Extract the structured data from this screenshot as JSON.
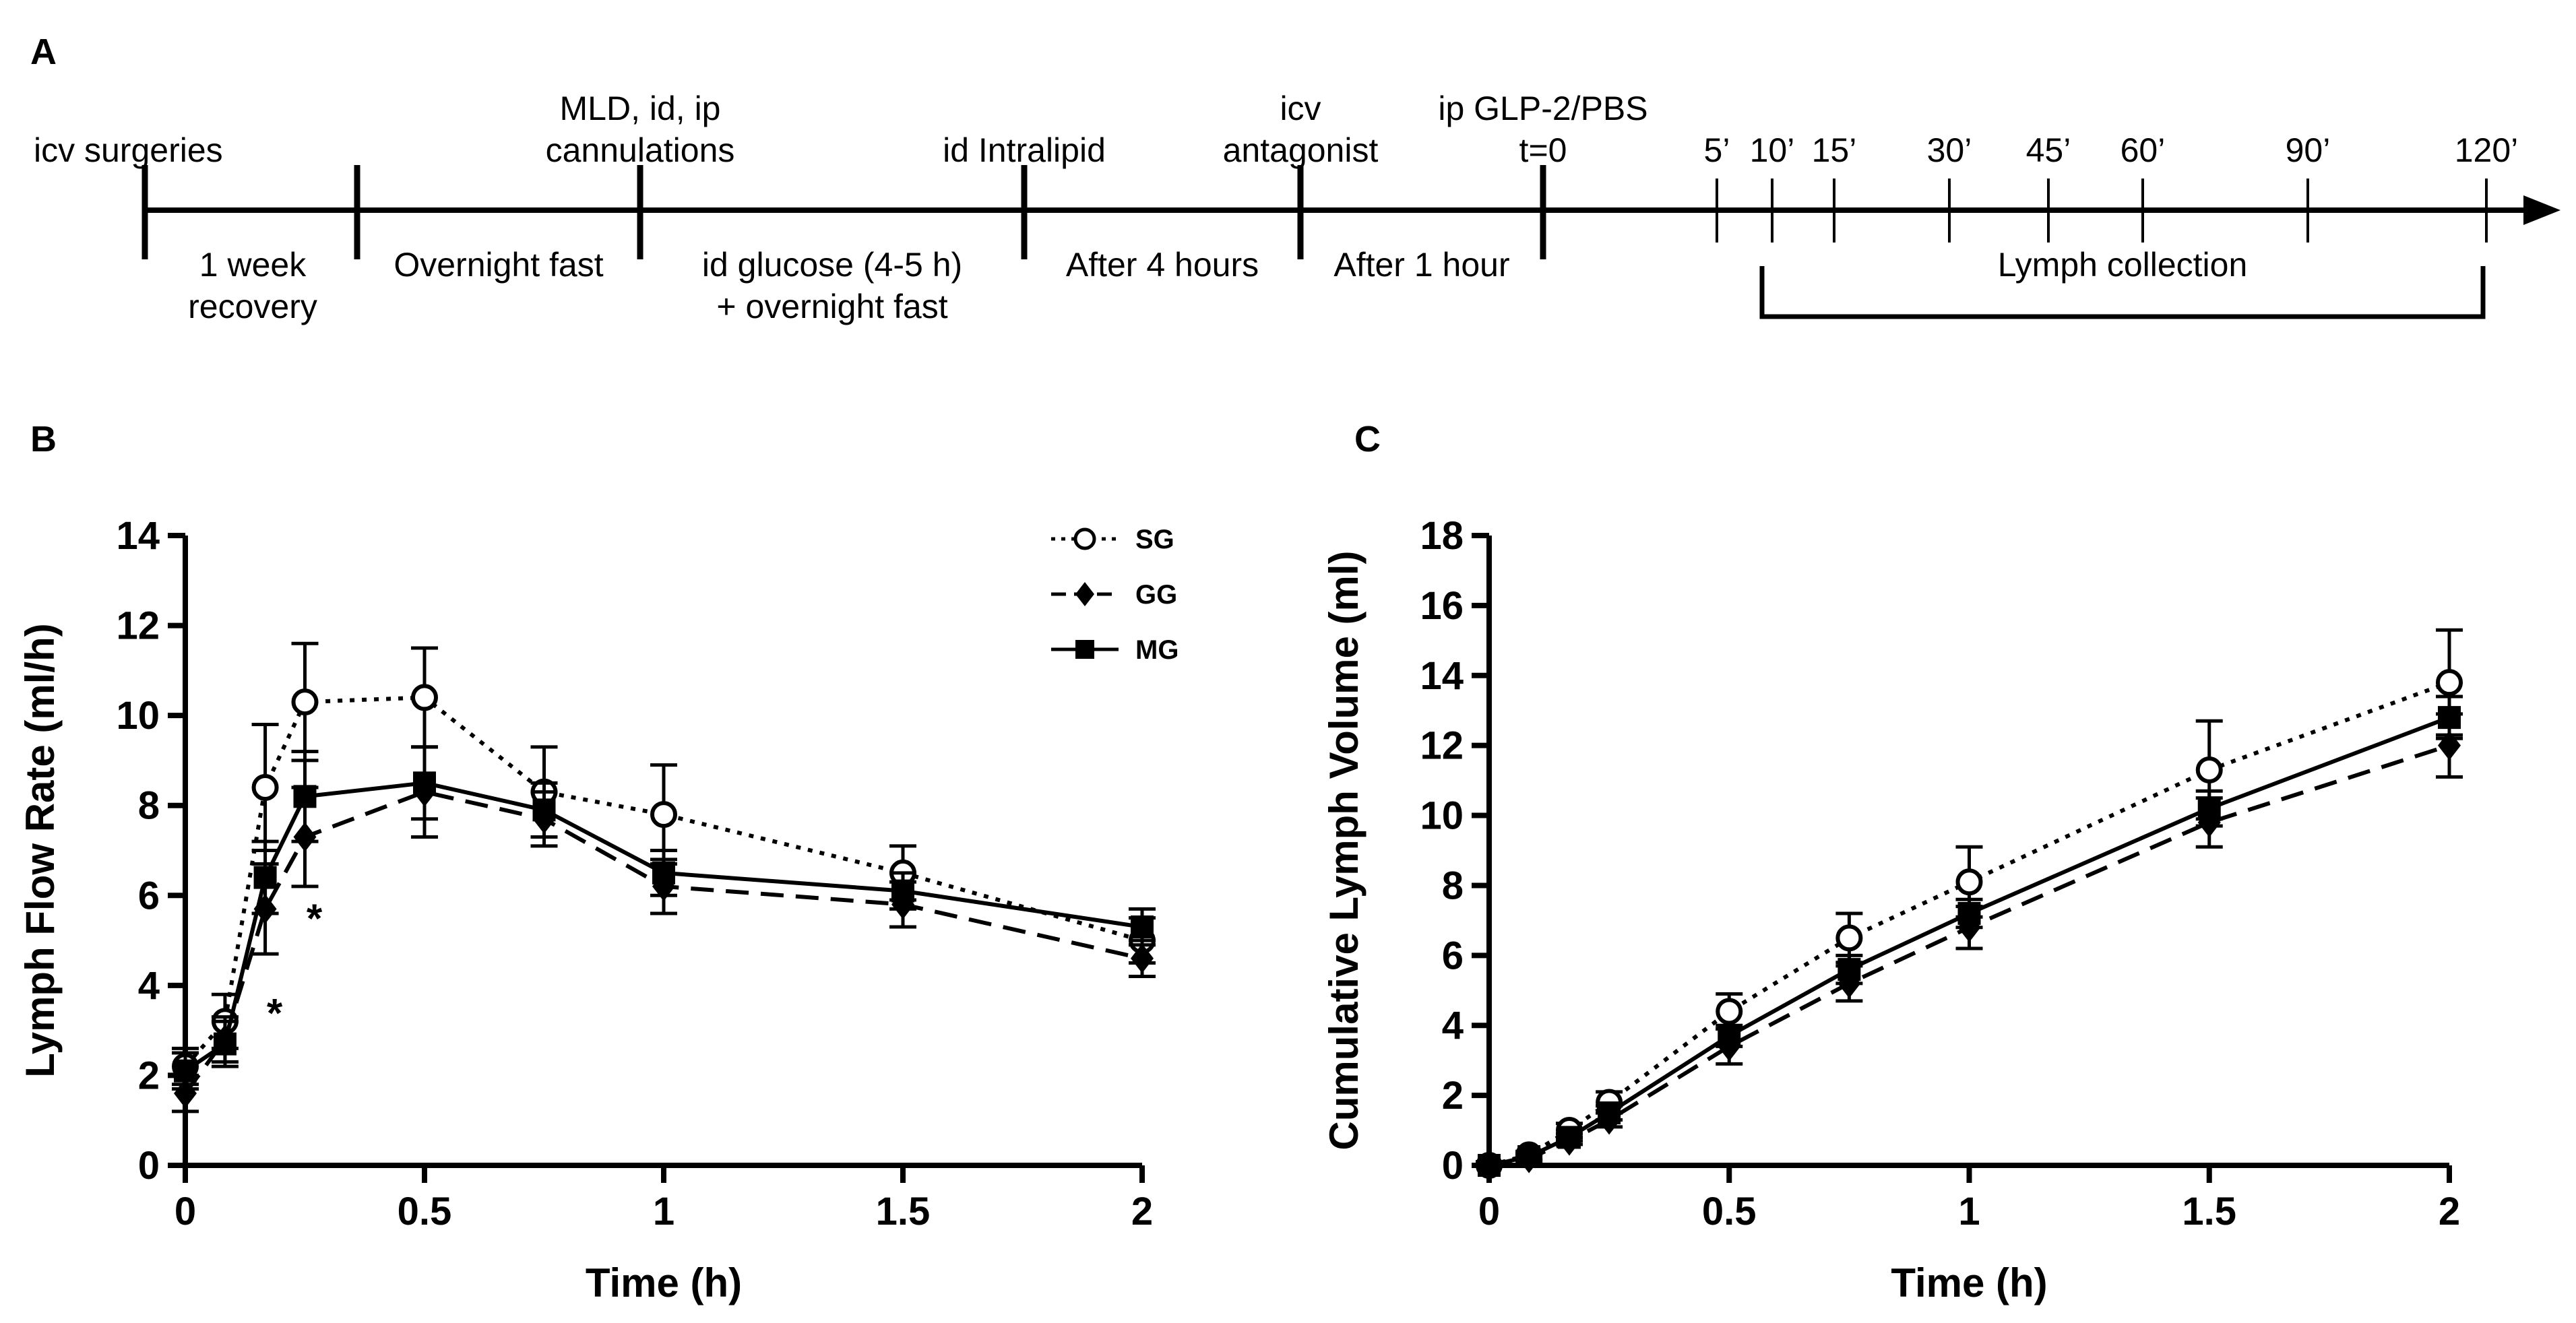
{
  "panel_a": {
    "letter": "A",
    "events_top": [
      {
        "id": "icv",
        "lines": [
          "icv surgeries"
        ]
      },
      {
        "id": "mld",
        "lines": [
          "MLD, id, ip",
          "cannulations"
        ]
      },
      {
        "id": "intralipid",
        "lines": [
          "id Intralipid"
        ]
      },
      {
        "id": "antag",
        "lines": [
          "icv",
          "antagonist"
        ]
      },
      {
        "id": "glp2",
        "lines": [
          "ip GLP-2/PBS",
          "t=0"
        ]
      }
    ],
    "intervals_below": [
      {
        "id": "recovery",
        "lines": [
          "1 week",
          "recovery"
        ]
      },
      {
        "id": "fast1",
        "lines": [
          "Overnight fast"
        ]
      },
      {
        "id": "glucose",
        "lines": [
          "id glucose (4-5 h)",
          "+ overnight fast"
        ]
      },
      {
        "id": "after4",
        "lines": [
          "After 4 hours"
        ]
      },
      {
        "id": "after1",
        "lines": [
          "After 1 hour"
        ]
      }
    ],
    "sample_times": [
      "5’",
      "10’",
      "15’",
      "30’",
      "45’",
      "60’",
      "90’",
      "120’"
    ],
    "collection_label": "Lymph collection"
  },
  "chart_data": [
    {
      "panel": "B",
      "type": "line",
      "title": "",
      "xlabel": "Time (h)",
      "ylabel": "Lymph Flow Rate (ml/h)",
      "xlim": [
        0,
        2
      ],
      "ylim": [
        0,
        14
      ],
      "xticks": [
        0,
        0.5,
        1,
        1.5,
        2
      ],
      "xtick_labels": [
        "0",
        "0.5",
        "1",
        "1.5",
        "2"
      ],
      "yticks": [
        0,
        2,
        4,
        6,
        8,
        10,
        12,
        14
      ],
      "ytick_labels": [
        "0",
        "2",
        "4",
        "6",
        "8",
        "10",
        "12",
        "14"
      ],
      "grid": false,
      "legend": "top-right",
      "x": [
        0,
        0.083,
        0.167,
        0.25,
        0.5,
        0.75,
        1,
        1.5,
        2
      ],
      "series": [
        {
          "name": "SG",
          "marker": "open-circle",
          "line": "dotted",
          "values": [
            2.2,
            3.2,
            8.4,
            10.3,
            10.4,
            8.3,
            7.8,
            6.5,
            5.0
          ],
          "errors": [
            0.4,
            0.6,
            1.4,
            1.3,
            1.1,
            1.0,
            1.1,
            0.6,
            0.5
          ]
        },
        {
          "name": "GG",
          "marker": "filled-diamond",
          "line": "dashed",
          "values": [
            1.6,
            2.8,
            5.7,
            7.3,
            8.3,
            7.7,
            6.2,
            5.8,
            4.6
          ],
          "errors": [
            0.4,
            0.5,
            1.0,
            1.1,
            1.0,
            0.6,
            0.6,
            0.5,
            0.4
          ]
        },
        {
          "name": "MG",
          "marker": "filled-square",
          "line": "solid",
          "values": [
            2.1,
            2.7,
            6.4,
            8.2,
            8.5,
            7.9,
            6.5,
            6.1,
            5.3
          ],
          "errors": [
            0.4,
            0.5,
            0.8,
            1.0,
            0.8,
            0.6,
            0.5,
            0.4,
            0.4
          ]
        }
      ],
      "annotations": [
        {
          "text": "*",
          "x": 0.167,
          "y": 3.5
        },
        {
          "text": "*",
          "x": 0.25,
          "y": 5.6
        }
      ]
    },
    {
      "panel": "C",
      "type": "line",
      "title": "",
      "xlabel": "Time (h)",
      "ylabel": "Cumulative Lymph Volume (ml)",
      "xlim": [
        0,
        2
      ],
      "ylim": [
        0,
        18
      ],
      "xticks": [
        0,
        0.5,
        1,
        1.5,
        2
      ],
      "xtick_labels": [
        "0",
        "0.5",
        "1",
        "1.5",
        "2"
      ],
      "yticks": [
        0,
        2,
        4,
        6,
        8,
        10,
        12,
        14,
        16,
        18
      ],
      "ytick_labels": [
        "0",
        "2",
        "4",
        "6",
        "8",
        "10",
        "12",
        "14",
        "16",
        "18"
      ],
      "grid": false,
      "legend": "none",
      "x": [
        0,
        0.083,
        0.167,
        0.25,
        0.5,
        0.75,
        1,
        1.5,
        2
      ],
      "series": [
        {
          "name": "SG",
          "marker": "open-circle",
          "line": "dotted",
          "values": [
            0,
            0.3,
            1.0,
            1.8,
            4.4,
            6.5,
            8.1,
            11.3,
            13.8
          ],
          "errors": [
            0.1,
            0.1,
            0.2,
            0.3,
            0.5,
            0.7,
            1.0,
            1.4,
            1.5
          ]
        },
        {
          "name": "GG",
          "marker": "filled-diamond",
          "line": "dashed",
          "values": [
            0,
            0.2,
            0.7,
            1.3,
            3.4,
            5.2,
            6.8,
            9.8,
            12.0
          ],
          "errors": [
            0.1,
            0.1,
            0.1,
            0.2,
            0.5,
            0.5,
            0.6,
            0.7,
            0.9
          ]
        },
        {
          "name": "MG",
          "marker": "filled-square",
          "line": "solid",
          "values": [
            0,
            0.25,
            0.8,
            1.5,
            3.7,
            5.6,
            7.2,
            10.2,
            12.8
          ],
          "errors": [
            0.1,
            0.1,
            0.1,
            0.2,
            0.3,
            0.4,
            0.4,
            0.5,
            0.6
          ]
        }
      ],
      "annotations": []
    }
  ]
}
